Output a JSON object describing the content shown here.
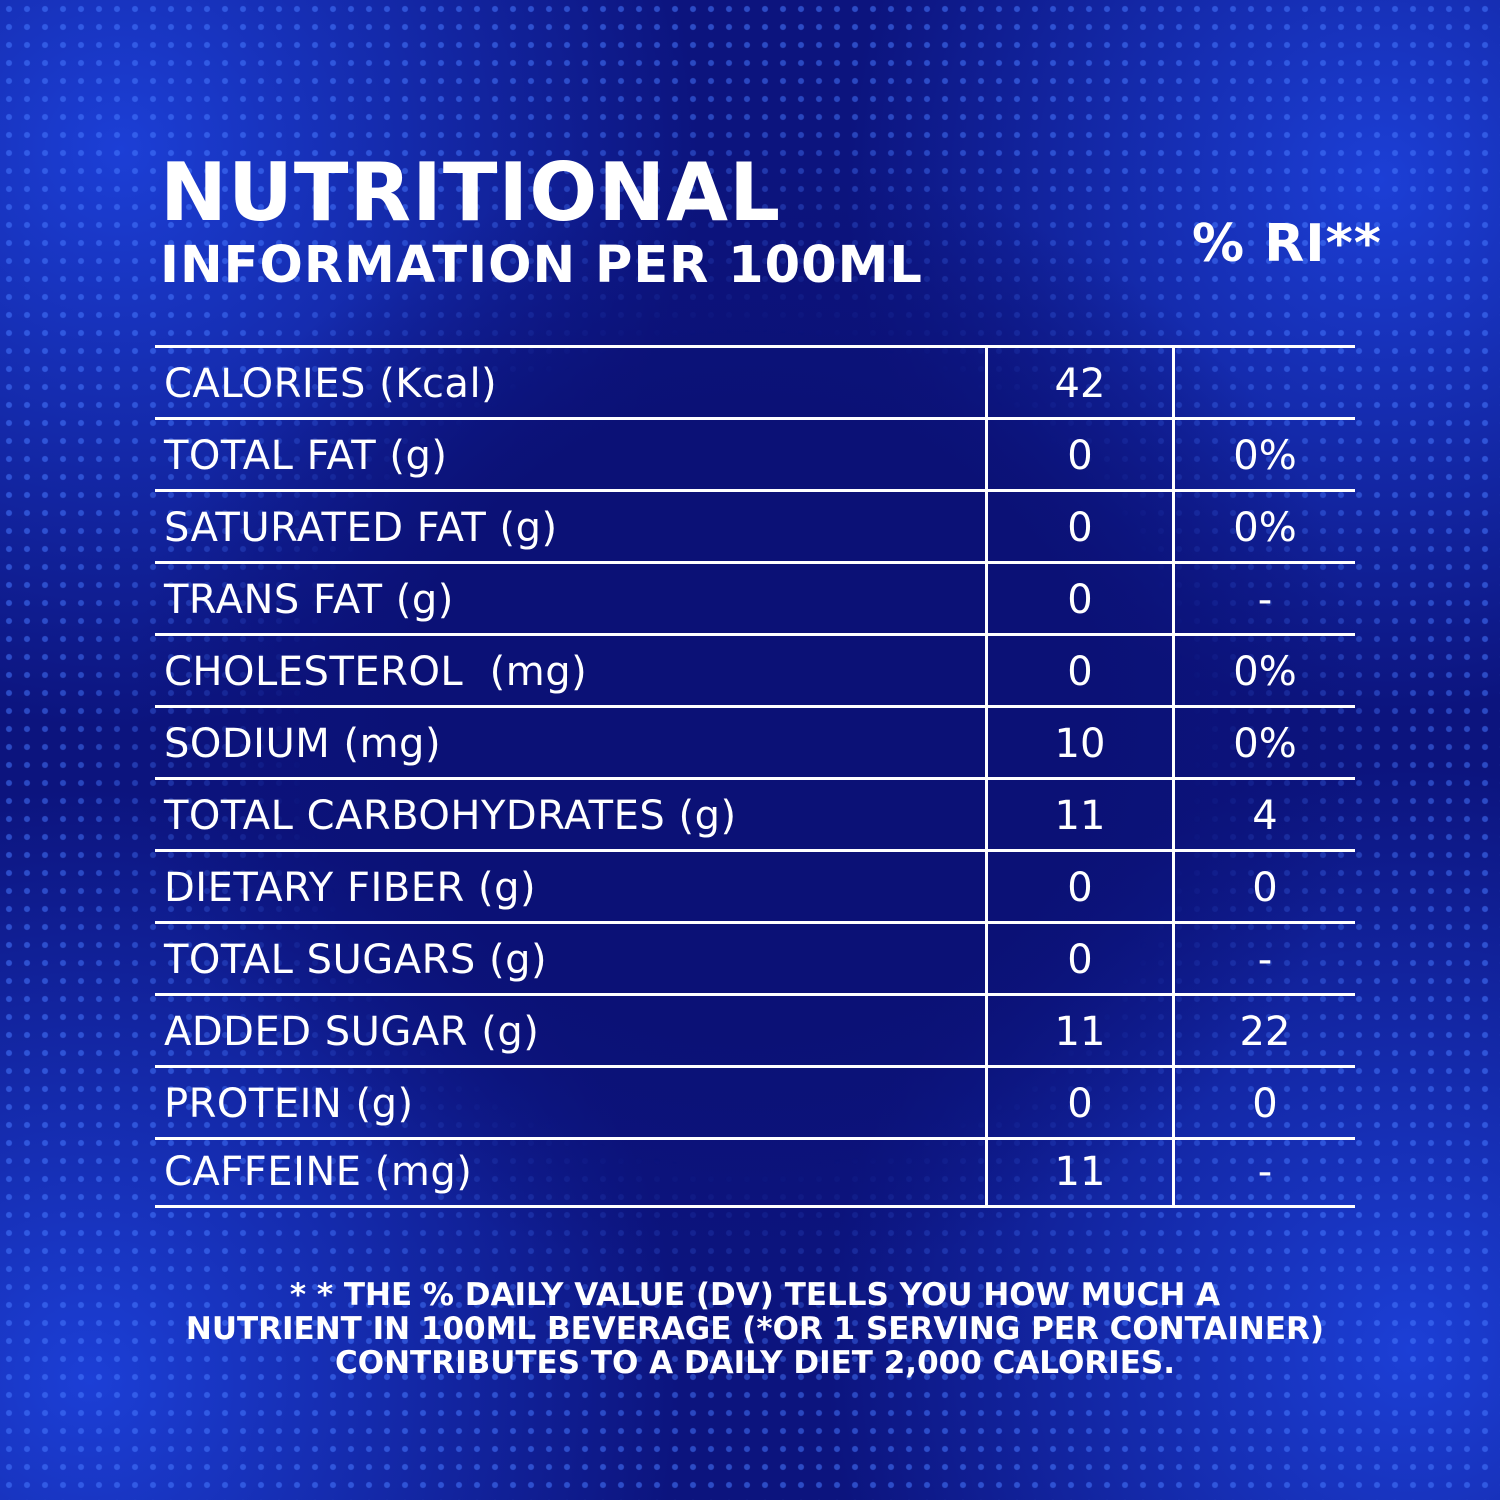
{
  "header": {
    "title_line1": "NUTRITIONAL",
    "title_line2": "INFORMATION PER 100ML",
    "ri_heading": "% RI**"
  },
  "rows": [
    {
      "name": "CALORIES (Kcal)",
      "value": "42",
      "ri": ""
    },
    {
      "name": "TOTAL FAT (g)",
      "value": "0",
      "ri": "0%"
    },
    {
      "name": "SATURATED FAT (g)",
      "value": "0",
      "ri": "0%"
    },
    {
      "name": "TRANS FAT (g)",
      "value": "0",
      "ri": "-"
    },
    {
      "name": "CHOLESTEROL  (mg)",
      "value": "0",
      "ri": "0%"
    },
    {
      "name": "SODIUM (mg)",
      "value": "10",
      "ri": "0%"
    },
    {
      "name": "TOTAL CARBOHYDRATES (g)",
      "value": "11",
      "ri": "4"
    },
    {
      "name": "DIETARY FIBER (g)",
      "value": "0",
      "ri": "0"
    },
    {
      "name": "TOTAL SUGARS (g)",
      "value": "0",
      "ri": "-"
    },
    {
      "name": "ADDED SUGAR (g)",
      "value": "11",
      "ri": "22"
    },
    {
      "name": "PROTEIN (g)",
      "value": "0",
      "ri": "0"
    },
    {
      "name": "CAFFEINE (mg)",
      "value": "11",
      "ri": "-"
    }
  ],
  "footnote": {
    "line1": "* * THE % DAILY VALUE (DV) TELLS YOU HOW MUCH A",
    "line2": "NUTRIENT IN 100ML BEVERAGE (*OR 1 SERVING PER CONTAINER)",
    "line3": "CONTRIBUTES TO A DAILY DIET 2,000 CALORIES."
  }
}
